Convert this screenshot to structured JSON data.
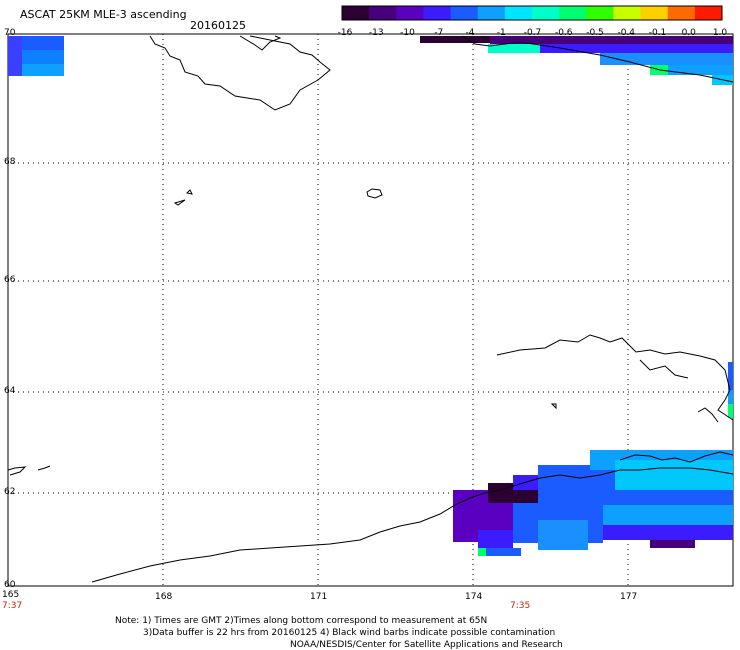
{
  "title": "ASCAT 25KM MLE-3 ascending",
  "date": "20160125",
  "colorbar": {
    "labels": [
      "-16",
      "-13",
      "-10",
      "-7",
      "-4",
      "-1",
      "-0.7",
      "-0.6",
      "-0.5",
      "-0.4",
      "-0.1",
      "0.0",
      "1.0"
    ],
    "colors": [
      "#2b0033",
      "#45007a",
      "#5a00c0",
      "#3a1cff",
      "#1a5cff",
      "#0ea0ff",
      "#00e5ff",
      "#00ffc8",
      "#00ff70",
      "#30ff00",
      "#c8ff00",
      "#ffd000",
      "#ff6a00",
      "#ff1a00"
    ]
  },
  "axes": {
    "lat_labels": [
      "70",
      "68",
      "66",
      "64",
      "62",
      "60"
    ],
    "lon_labels": [
      "165",
      "168",
      "171",
      "174",
      "177"
    ]
  },
  "times": {
    "left": "7:37",
    "mid": "7:35"
  },
  "notes": {
    "line1": "Note: 1) Times are GMT 2)Times along bottom correspond to measurement at 65N",
    "line2": "3)Data buffer is 22 hrs from 20160125 4) Black wind barbs indicate possible contamination",
    "line3": "NOAA/NESDIS/Center for Satellite Applications and Research"
  }
}
